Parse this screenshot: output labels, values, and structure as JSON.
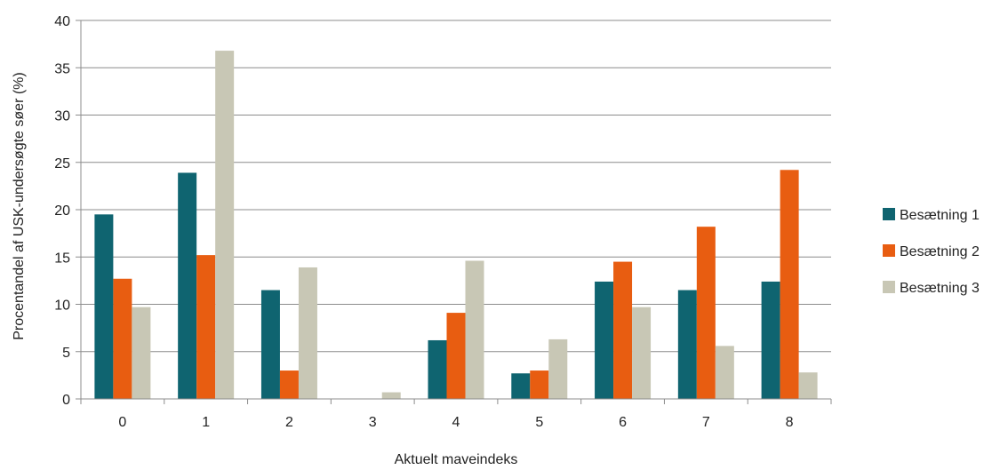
{
  "chart_data": {
    "type": "bar",
    "title": "",
    "xlabel": "Aktuelt maveindeks",
    "ylabel": "Procentandel af USK-undersøgte søer (%)",
    "ylim": [
      0,
      40
    ],
    "yticks": [
      0,
      5,
      10,
      15,
      20,
      25,
      30,
      35,
      40
    ],
    "grid": true,
    "legend_position": "right",
    "categories": [
      "0",
      "1",
      "2",
      "3",
      "4",
      "5",
      "6",
      "7",
      "8"
    ],
    "series": [
      {
        "name": "Besætning 1",
        "color": "#0f6470",
        "values": [
          19.5,
          23.9,
          11.5,
          0,
          6.2,
          2.7,
          12.4,
          11.5,
          12.4
        ]
      },
      {
        "name": "Besætning 2",
        "color": "#e85d11",
        "values": [
          12.7,
          15.2,
          3.0,
          0,
          9.1,
          3.0,
          14.5,
          18.2,
          24.2
        ]
      },
      {
        "name": "Besætning 3",
        "color": "#c8c7b5",
        "values": [
          9.7,
          36.8,
          13.9,
          0.7,
          14.6,
          6.3,
          9.7,
          5.6,
          2.8
        ]
      }
    ]
  }
}
